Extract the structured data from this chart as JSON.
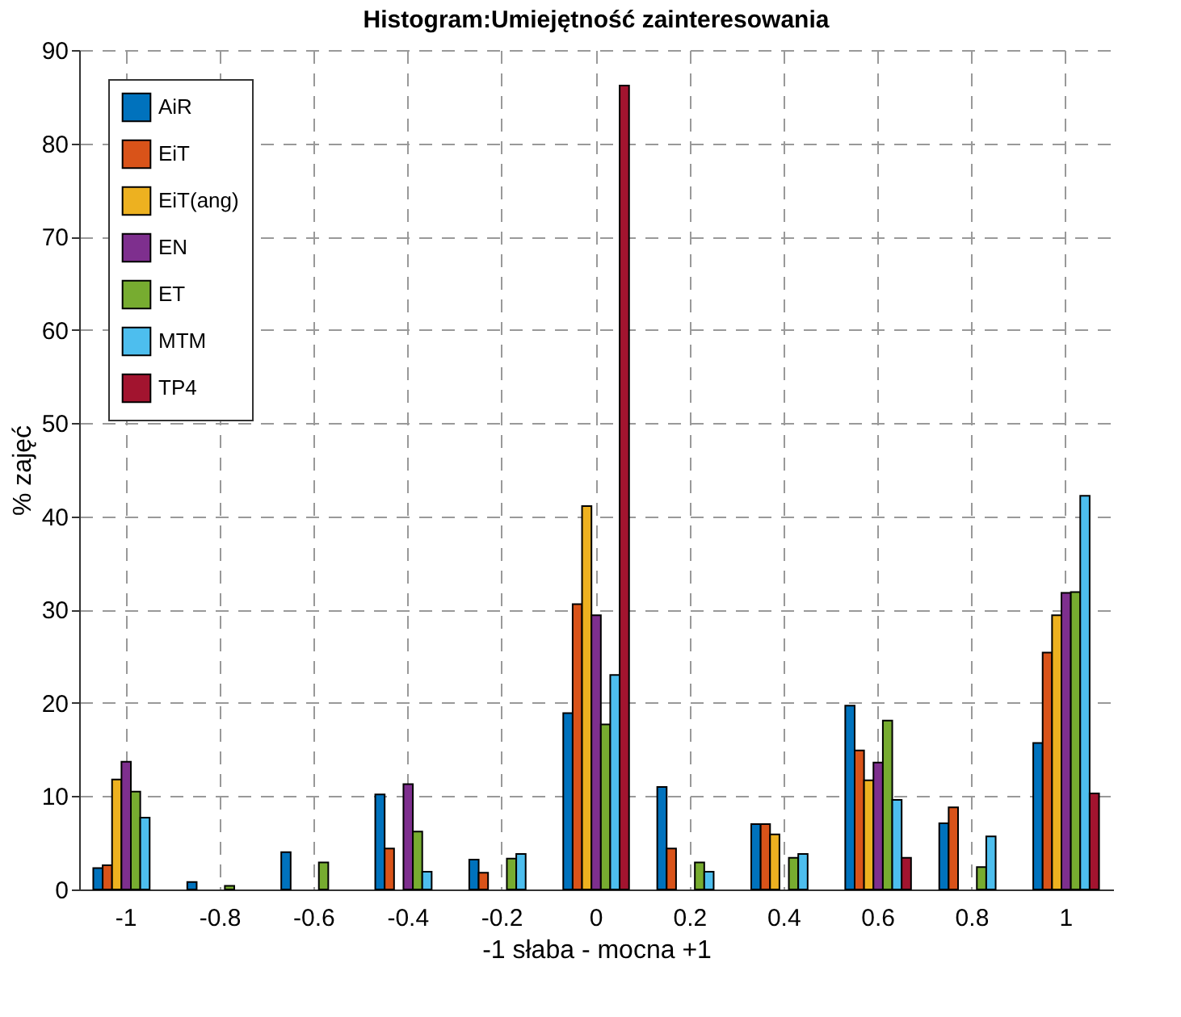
{
  "chart_data": {
    "type": "bar",
    "title": "Histogram:Umiejętność zainteresowania",
    "xlabel": "-1 słaba - mocna +1",
    "ylabel": "% zajęć",
    "categories": [
      "-1",
      "-0.8",
      "-0.6",
      "-0.4",
      "-0.2",
      "0",
      "0.2",
      "0.4",
      "0.6",
      "0.8",
      "1"
    ],
    "series": [
      {
        "name": "AiR",
        "color": "#0072bd",
        "values": [
          2.3,
          0.8,
          4.0,
          10.2,
          3.2,
          18.9,
          11.0,
          7.0,
          19.7,
          7.1,
          15.7
        ]
      },
      {
        "name": "EiT",
        "color": "#d95319",
        "values": [
          2.6,
          null,
          null,
          4.4,
          1.8,
          30.6,
          4.4,
          7.0,
          14.9,
          8.8,
          25.4
        ]
      },
      {
        "name": "EiT(ang)",
        "color": "#edb120",
        "values": [
          11.8,
          null,
          null,
          null,
          null,
          41.1,
          null,
          5.9,
          11.7,
          null,
          29.4
        ]
      },
      {
        "name": "EN",
        "color": "#7e2f8e",
        "values": [
          13.7,
          null,
          null,
          11.3,
          null,
          29.4,
          null,
          null,
          13.6,
          null,
          31.8
        ]
      },
      {
        "name": "ET",
        "color": "#77ac30",
        "values": [
          10.5,
          0.4,
          2.9,
          6.2,
          3.3,
          17.7,
          2.9,
          3.4,
          18.1,
          2.4,
          31.9
        ]
      },
      {
        "name": "MTM",
        "color": "#4dbeee",
        "values": [
          7.7,
          null,
          null,
          1.9,
          3.8,
          23.0,
          1.9,
          3.8,
          9.6,
          5.7,
          42.2
        ]
      },
      {
        "name": "TP4",
        "color": "#a2142f",
        "values": [
          null,
          null,
          null,
          null,
          null,
          86.2,
          null,
          null,
          3.4,
          null,
          10.3
        ]
      }
    ],
    "ylim": [
      0,
      90
    ],
    "yticks": [
      0,
      10,
      20,
      30,
      40,
      50,
      60,
      70,
      80,
      90
    ],
    "grid": true,
    "legend": "top left"
  }
}
